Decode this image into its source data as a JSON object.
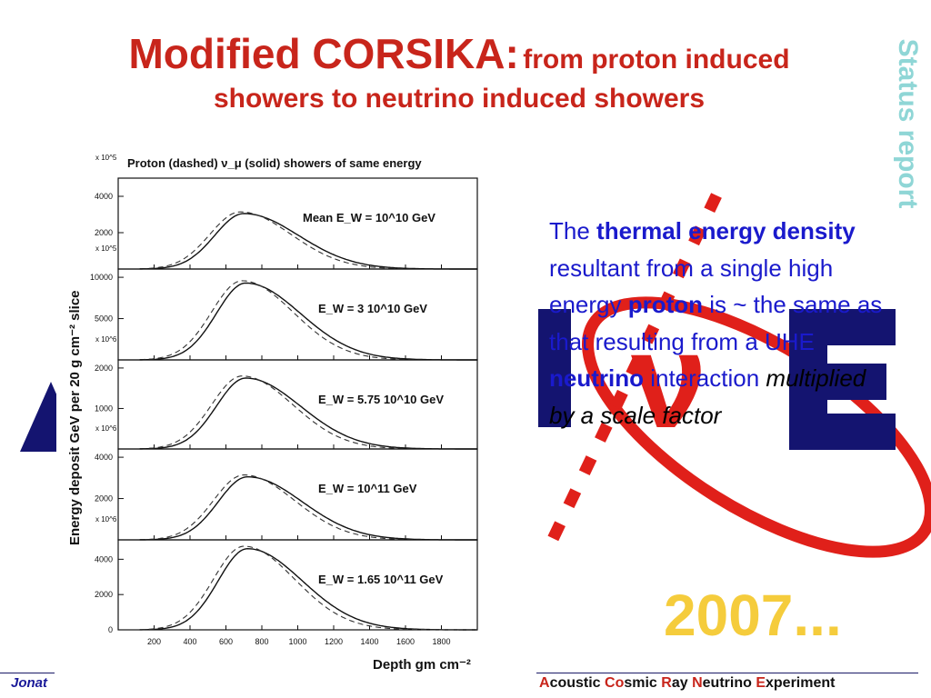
{
  "slide": {
    "title_main": "Modified CORSIKA:",
    "title_sub_a": "from proton induced",
    "title_sub_b": "showers to neutrino induced showers",
    "side_label": "Status report",
    "year": "2007...",
    "footer_left": "Jonat",
    "logo_text": "AcoRνE"
  },
  "paragraph": {
    "p1": "The ",
    "b1": "thermal energy density",
    "p2": " resultant from a single high energy ",
    "b2": "proton",
    "p3": " is ~ the same as that resulting from a UHE ",
    "b3": "neutrino",
    "p4": " interaction ",
    "it": "multiplied by a scale factor"
  },
  "footer_right": [
    {
      "initial": "A",
      "rest": "coustic "
    },
    {
      "initial": "Co",
      "rest": "smic "
    },
    {
      "initial": "R",
      "rest": "ay "
    },
    {
      "initial": "N",
      "rest": "eutrino "
    },
    {
      "initial": "E",
      "rest": "xperiment"
    }
  ],
  "chart_data": {
    "type": "line",
    "title": "Proton (dashed) ν_μ (solid) showers of same energy",
    "xlabel": "Depth gm cm⁻²",
    "ylabel": "Energy deposit GeV per 20 g cm⁻² slice",
    "xlim": [
      0,
      2000
    ],
    "x_ticks": [
      200,
      400,
      600,
      800,
      1000,
      1200,
      1400,
      1600,
      1800
    ],
    "panels": [
      {
        "label": "Mean E_W = 10^10 GeV",
        "scale": "x 10^5",
        "y_ticks": [
          2000,
          4000
        ],
        "ylim": [
          0,
          5000
        ],
        "peak": 3050,
        "peak_x": 700
      },
      {
        "label": "E_W = 3 10^10 GeV",
        "scale": "x 10^5",
        "y_ticks": [
          5000,
          10000
        ],
        "ylim": [
          0,
          11000
        ],
        "peak": 9300,
        "peak_x": 710
      },
      {
        "label": "E_W = 5.75 10^10 GeV",
        "scale": "x 10^6",
        "y_ticks": [
          1000,
          2000
        ],
        "ylim": [
          0,
          2200
        ],
        "peak": 1750,
        "peak_x": 710
      },
      {
        "label": "E_W = 10^11 GeV",
        "scale": "x 10^6",
        "y_ticks": [
          2000,
          4000
        ],
        "ylim": [
          0,
          4400
        ],
        "peak": 3050,
        "peak_x": 720
      },
      {
        "label": "E_W = 1.65 10^11 GeV",
        "scale": "x 10^6",
        "y_ticks": [
          0,
          2000,
          4000
        ],
        "ylim": [
          0,
          5100
        ],
        "peak": 4600,
        "peak_x": 720
      }
    ],
    "series": [
      {
        "name": "Proton (dashed)",
        "style": "dashed"
      },
      {
        "name": "ν_μ (solid)",
        "style": "solid"
      }
    ]
  }
}
